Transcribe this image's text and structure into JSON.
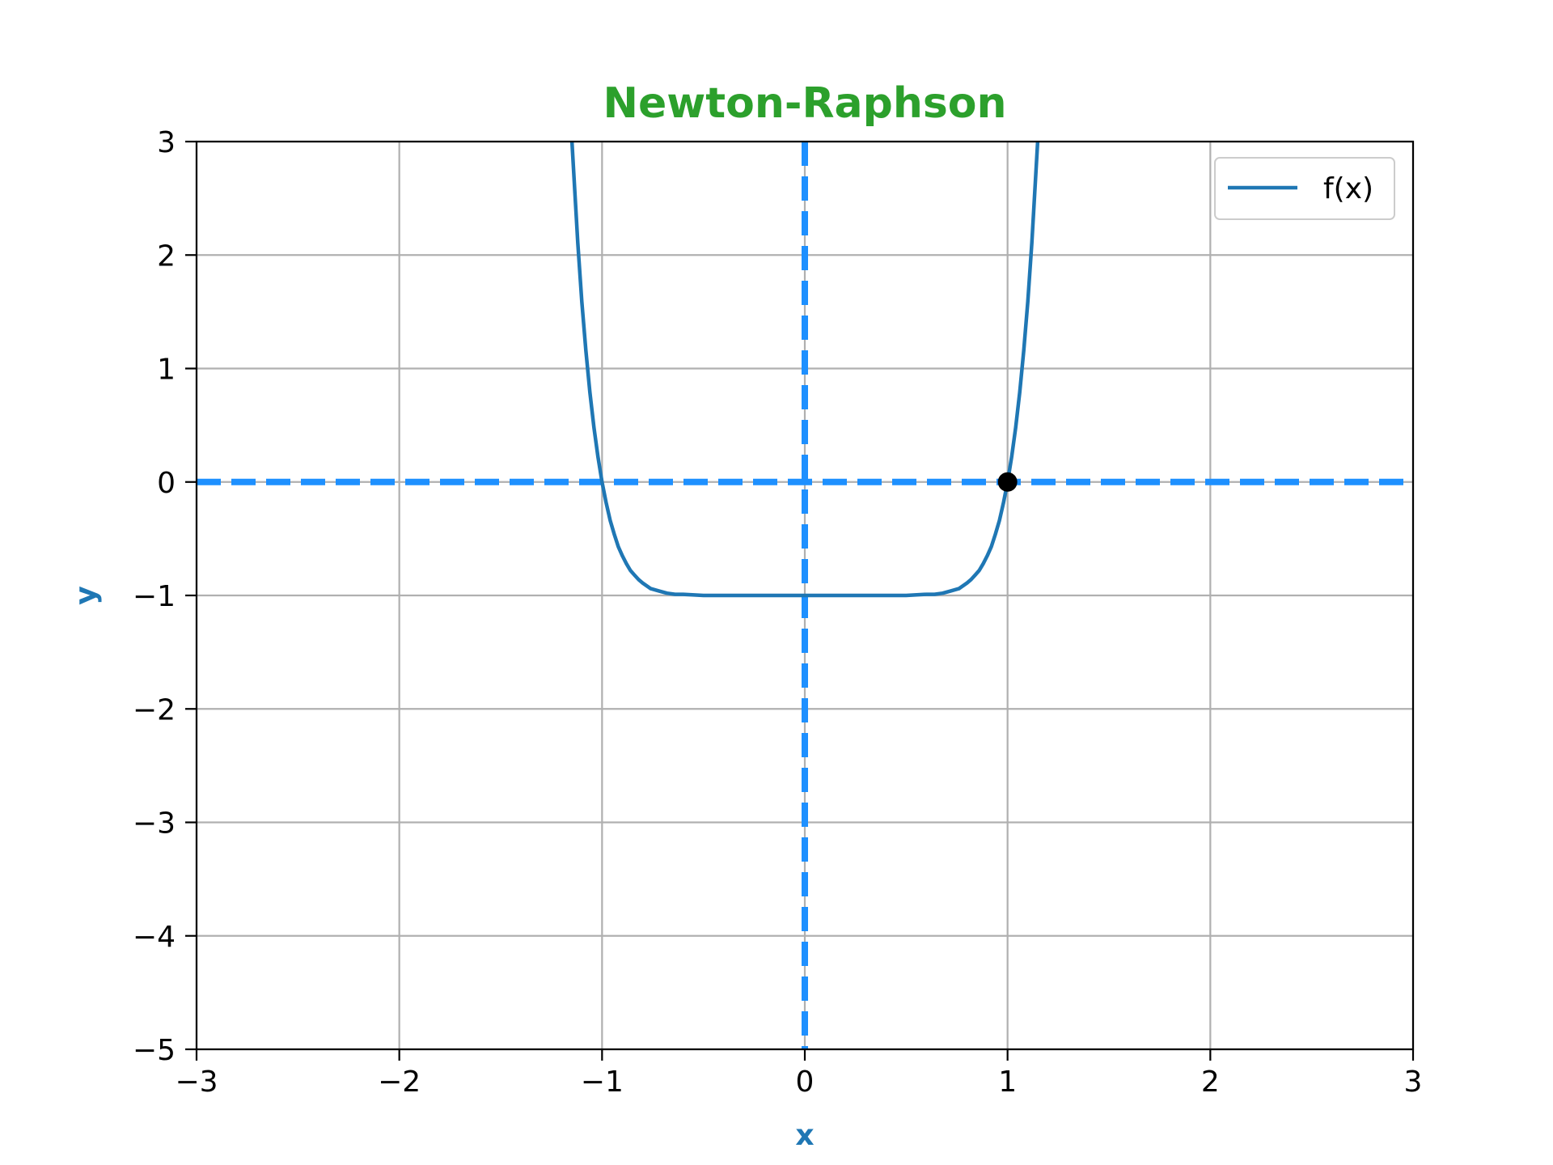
{
  "chart_data": {
    "type": "line",
    "title": "Newton-Raphson",
    "xlabel": "x",
    "ylabel": "y",
    "xlim": [
      -3,
      3
    ],
    "ylim": [
      -5,
      3
    ],
    "xticks": [
      -3,
      -2,
      -1,
      0,
      1,
      2,
      3
    ],
    "yticks": [
      -5,
      -4,
      -3,
      -2,
      -1,
      0,
      1,
      2,
      3
    ],
    "xtick_labels": [
      "−3",
      "−2",
      "−1",
      "0",
      "1",
      "2",
      "3"
    ],
    "ytick_labels": [
      "−5",
      "−4",
      "−3",
      "−2",
      "−1",
      "0",
      "1",
      "2",
      "3"
    ],
    "grid": true,
    "legend": {
      "position": "top-right"
    },
    "series": [
      {
        "name": "f(x)",
        "x": [
          -1.15,
          -1.12,
          -1.1,
          -1.08,
          -1.06,
          -1.04,
          -1.02,
          -1.0,
          -0.98,
          -0.96,
          -0.94,
          -0.92,
          -0.9,
          -0.88,
          -0.86,
          -0.84,
          -0.82,
          -0.8,
          -0.76,
          -0.72,
          -0.68,
          -0.64,
          -0.6,
          -0.5,
          -0.4,
          -0.3,
          -0.2,
          -0.1,
          0.0,
          0.1,
          0.2,
          0.3,
          0.4,
          0.5,
          0.6,
          0.64,
          0.68,
          0.72,
          0.76,
          0.8,
          0.82,
          0.84,
          0.86,
          0.88,
          0.9,
          0.92,
          0.94,
          0.96,
          0.98,
          1.0,
          1.02,
          1.04,
          1.06,
          1.08,
          1.1,
          1.12,
          1.15
        ],
        "y": [
          3.05,
          2.11,
          1.59,
          1.16,
          0.79,
          0.48,
          0.22,
          0.0,
          -0.18,
          -0.34,
          -0.46,
          -0.57,
          -0.65,
          -0.72,
          -0.78,
          -0.82,
          -0.86,
          -0.89,
          -0.94,
          -0.96,
          -0.98,
          -0.99,
          -0.99,
          -1.0,
          -1.0,
          -1.0,
          -1.0,
          -1.0,
          -1.0,
          -1.0,
          -1.0,
          -1.0,
          -1.0,
          -1.0,
          -0.99,
          -0.99,
          -0.98,
          -0.96,
          -0.94,
          -0.89,
          -0.86,
          -0.82,
          -0.78,
          -0.72,
          -0.65,
          -0.57,
          -0.46,
          -0.34,
          -0.18,
          0.0,
          0.22,
          0.48,
          0.79,
          1.16,
          1.59,
          2.11,
          3.05
        ],
        "color": "#1f77b4"
      }
    ],
    "reference_lines": [
      {
        "orientation": "horizontal",
        "value": 0,
        "color": "#1e90ff",
        "style": "dashed"
      },
      {
        "orientation": "vertical",
        "value": 0,
        "color": "#1e90ff",
        "style": "dashed"
      }
    ],
    "markers": [
      {
        "x": 1,
        "y": 0,
        "color": "#000000"
      }
    ],
    "colors": {
      "title": "#2ca02c",
      "axis_labels": "#1f77b4",
      "grid": "#b0b0b0"
    }
  }
}
